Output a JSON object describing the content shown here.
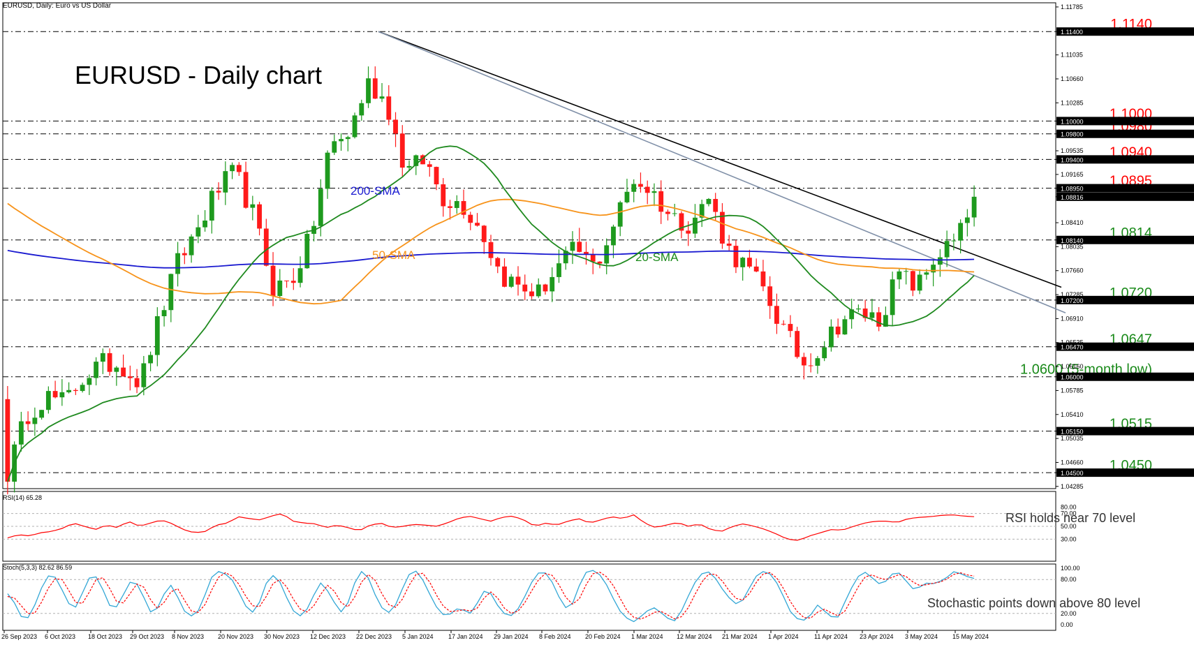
{
  "header": {
    "symbol_label": "EURUSD, Daily:  Euro vs US Dollar",
    "title": "EURUSD - Daily chart"
  },
  "colors": {
    "bull": "#1e9a1e",
    "bear": "#ff1a1a",
    "sma20": "#1f8a1f",
    "sma50": "#f7931a",
    "sma200": "#1a1ad0",
    "resistance_line": "#000000",
    "support_line": "#8090a8",
    "level_red": "#ff0000",
    "level_green": "#1a8a1a",
    "rsi": "#ff0000",
    "stoch_main": "#33a7d6",
    "stoch_signal": "#ff0000"
  },
  "chart_data": [
    {
      "type": "candlestick",
      "ylim": [
        1.0425,
        1.1185
      ],
      "x_ticks": [
        "26 Sep 2023",
        "6 Oct 2023",
        "18 Oct 2023",
        "29 Oct 2023",
        "8 Nov 2023",
        "20 Nov 2023",
        "30 Nov 2023",
        "12 Dec 2023",
        "22 Dec 2023",
        "5 Jan 2024",
        "17 Jan 2024",
        "29 Jan 2024",
        "8 Feb 2024",
        "20 Feb 2024",
        "1 Mar 2024",
        "12 Mar 2024",
        "21 Mar 2024",
        "1 Apr 2024",
        "11 Apr 2024",
        "23 Apr 2024",
        "3 May 2024",
        "15 May 2024"
      ],
      "y_ticks": [
        "1.11785",
        "1.11400",
        "1.11035",
        "1.10660",
        "1.10285",
        "1.10000",
        "1.09800",
        "1.09535",
        "1.09400",
        "1.09165",
        "1.08950",
        "1.08816",
        "1.08410",
        "1.08140",
        "1.08035",
        "1.07660",
        "1.07285",
        "1.07200",
        "1.06910",
        "1.06535",
        "1.06470",
        "1.06160",
        "1.06000",
        "1.05785",
        "1.05410",
        "1.05150",
        "1.05035",
        "1.04660",
        "1.04500",
        "1.04285"
      ],
      "levels": [
        {
          "value": 1.114,
          "label": "1.1140",
          "tag": "1.11400",
          "color": "red"
        },
        {
          "value": 1.1,
          "label": "1.1000",
          "tag": "1.10000",
          "color": "red"
        },
        {
          "value": 1.098,
          "label": "1.0980",
          "tag": "1.09800",
          "color": "red"
        },
        {
          "value": 1.094,
          "label": "1.0940",
          "tag": "1.09400",
          "color": "red"
        },
        {
          "value": 1.0895,
          "label": "1.0895",
          "tag": "1.08950",
          "color": "red"
        },
        {
          "value": 1.0814,
          "label": "1.0814",
          "tag": "1.08140",
          "color": "green"
        },
        {
          "value": 1.072,
          "label": "1.0720",
          "tag": "1.07200",
          "color": "green"
        },
        {
          "value": 1.0647,
          "label": "1.0647",
          "tag": "1.06470",
          "color": "green"
        },
        {
          "value": 1.06,
          "label": "1.0600 (5-month low)",
          "tag": "1.06000",
          "color": "green"
        },
        {
          "value": 1.0515,
          "label": "1.0515",
          "tag": "1.05150",
          "color": "green"
        },
        {
          "value": 1.045,
          "label": "1.0450",
          "tag": "1.04500",
          "color": "green"
        }
      ],
      "last_price": {
        "value": 1.08816,
        "tag": "1.08816"
      },
      "anchors": [
        [
          1.056,
          1.0625,
          1.048,
          1.045
        ],
        [
          1.056,
          1.059,
          1.05,
          1.054
        ],
        [
          1.061,
          1.065,
          1.054,
          1.057
        ],
        [
          1.058,
          1.062,
          1.053,
          1.056
        ],
        [
          1.062,
          1.065,
          1.057,
          1.06
        ],
        [
          1.066,
          1.069,
          1.06,
          1.062
        ],
        [
          1.067,
          1.07,
          1.06,
          1.062
        ],
        [
          1.061,
          1.065,
          1.057,
          1.059
        ],
        [
          1.072,
          1.074,
          1.065,
          1.069
        ],
        [
          1.082,
          1.085,
          1.073,
          1.078
        ],
        [
          1.088,
          1.091,
          1.082,
          1.083
        ],
        [
          1.094,
          1.097,
          1.086,
          1.089
        ],
        [
          1.095,
          1.1,
          1.09,
          1.092
        ],
        [
          1.09,
          1.095,
          1.08,
          1.085
        ],
        [
          1.078,
          1.08,
          1.073,
          1.074
        ],
        [
          1.078,
          1.082,
          1.072,
          1.075
        ],
        [
          1.092,
          1.096,
          1.078,
          1.082
        ],
        [
          1.098,
          1.101,
          1.09,
          1.096
        ],
        [
          1.099,
          1.104,
          1.096,
          1.098
        ],
        [
          1.11,
          1.114,
          1.101,
          1.106
        ],
        [
          1.105,
          1.109,
          1.099,
          1.103
        ],
        [
          1.093,
          1.099,
          1.088,
          1.092
        ],
        [
          1.096,
          1.1,
          1.09,
          1.094
        ],
        [
          1.089,
          1.094,
          1.085,
          1.088
        ],
        [
          1.089,
          1.093,
          1.084,
          1.087
        ],
        [
          1.086,
          1.09,
          1.08,
          1.083
        ],
        [
          1.078,
          1.082,
          1.073,
          1.076
        ],
        [
          1.076,
          1.079,
          1.072,
          1.074
        ],
        [
          1.075,
          1.078,
          1.07,
          1.073
        ],
        [
          1.079,
          1.083,
          1.072,
          1.077
        ],
        [
          1.081,
          1.085,
          1.077,
          1.08
        ],
        [
          1.078,
          1.082,
          1.074,
          1.077
        ],
        [
          1.086,
          1.09,
          1.08,
          1.084
        ],
        [
          1.093,
          1.097,
          1.088,
          1.091
        ],
        [
          1.093,
          1.096,
          1.086,
          1.089
        ],
        [
          1.09,
          1.094,
          1.083,
          1.085
        ],
        [
          1.085,
          1.089,
          1.082,
          1.084
        ],
        [
          1.09,
          1.093,
          1.085,
          1.088
        ],
        [
          1.082,
          1.086,
          1.076,
          1.08
        ],
        [
          1.079,
          1.084,
          1.073,
          1.077
        ],
        [
          1.077,
          1.08,
          1.069,
          1.073
        ],
        [
          1.07,
          1.073,
          1.063,
          1.067
        ],
        [
          1.064,
          1.068,
          1.06,
          1.062
        ],
        [
          1.068,
          1.071,
          1.062,
          1.065
        ],
        [
          1.072,
          1.074,
          1.066,
          1.069
        ],
        [
          1.072,
          1.075,
          1.068,
          1.07
        ],
        [
          1.072,
          1.076,
          1.065,
          1.069
        ],
        [
          1.071,
          1.078,
          1.07,
          1.076
        ],
        [
          1.079,
          1.081,
          1.071,
          1.074
        ],
        [
          1.08,
          1.082,
          1.075,
          1.079
        ],
        [
          1.085,
          1.089,
          1.079,
          1.081
        ],
        [
          1.088,
          1.0895,
          1.084,
          1.087
        ]
      ]
    },
    {
      "type": "line",
      "name": "RSI(14) 65.28",
      "annotation": "RSI holds near 70 level",
      "ylim": [
        0,
        100
      ],
      "y_ticks": [
        "80.00",
        "70.00",
        "50.00",
        "30.00"
      ],
      "levels": [
        70,
        50,
        30
      ],
      "anchors": [
        32,
        37,
        35,
        40,
        42,
        47,
        55,
        50,
        45,
        52,
        48,
        58,
        50,
        55,
        60,
        54,
        45,
        40,
        42,
        52,
        55,
        65,
        62,
        60,
        66,
        70,
        58,
        55,
        54,
        48,
        52,
        48,
        43,
        52,
        55,
        48,
        50,
        53,
        52,
        50,
        55,
        62,
        66,
        62,
        58,
        64,
        66,
        60,
        50,
        55,
        52,
        58,
        62,
        55,
        60,
        65,
        62,
        68,
        55,
        48,
        52,
        56,
        50,
        54,
        45,
        42,
        50,
        54,
        50,
        45,
        38,
        30,
        28,
        35,
        40,
        45,
        44,
        50,
        55,
        58,
        58,
        56,
        62,
        64,
        65,
        67,
        68,
        66,
        65
      ]
    },
    {
      "type": "line",
      "name": "Stoch(5,3,3) 82.62 86.59",
      "annotation": "Stochastic points down above 80 level",
      "ylim": [
        0,
        100
      ],
      "y_ticks": [
        "100.00",
        "80.00",
        "20.00",
        "0.00"
      ],
      "levels": [
        80,
        20
      ],
      "main_anchors": [
        55,
        40,
        15,
        10,
        30,
        60,
        85,
        90,
        70,
        45,
        25,
        40,
        75,
        90,
        80,
        50,
        25,
        35,
        60,
        80,
        70,
        45,
        20,
        30,
        55,
        70,
        50,
        25,
        15,
        20,
        45,
        80,
        95,
        92,
        85,
        70,
        40,
        25,
        20,
        55,
        85,
        88,
        70,
        40,
        20,
        15,
        30,
        55,
        75,
        60,
        40,
        22,
        35,
        70,
        95,
        90,
        60,
        35,
        20,
        25,
        50,
        80,
        98,
        92,
        70,
        45,
        25,
        15,
        20,
        30,
        25,
        20,
        40,
        60,
        55,
        35,
        20,
        15,
        25,
        45,
        70,
        90,
        95,
        85,
        60,
        35,
        25,
        50,
        85,
        98,
        95,
        85,
        65,
        40,
        20,
        10,
        5,
        15,
        25,
        30,
        22,
        12,
        5,
        20,
        45,
        70,
        88,
        95,
        90,
        70,
        55,
        40,
        35,
        50,
        75,
        92,
        95,
        88,
        70,
        45,
        20,
        10,
        8,
        18,
        35,
        25,
        15,
        10,
        35,
        60,
        82,
        95,
        88,
        75,
        70,
        85,
        95,
        88,
        70,
        60,
        70,
        75,
        72,
        78,
        85,
        95,
        90,
        85,
        82
      ],
      "signal_anchors": [
        50,
        48,
        35,
        20,
        18,
        35,
        60,
        80,
        85,
        70,
        45,
        32,
        45,
        70,
        88,
        80,
        55,
        35,
        40,
        60,
        75,
        65,
        42,
        28,
        40,
        58,
        65,
        45,
        25,
        20,
        30,
        55,
        80,
        93,
        90,
        80,
        60,
        40,
        28,
        35,
        60,
        80,
        80,
        62,
        40,
        25,
        22,
        35,
        55,
        70,
        60,
        40,
        30,
        45,
        72,
        90,
        85,
        62,
        40,
        28,
        35,
        58,
        82,
        95,
        88,
        68,
        45,
        28,
        22,
        25,
        27,
        24,
        30,
        48,
        58,
        48,
        30,
        20,
        22,
        35,
        55,
        75,
        90,
        92,
        80,
        58,
        38,
        35,
        55,
        82,
        95,
        92,
        82,
        65,
        42,
        22,
        12,
        10,
        15,
        22,
        24,
        18,
        10,
        12,
        25,
        48,
        70,
        88,
        92,
        85,
        68,
        52,
        42,
        45,
        62,
        82,
        93,
        92,
        80,
        60,
        38,
        22,
        12,
        12,
        22,
        28,
        22,
        15,
        20,
        40,
        62,
        82,
        90,
        85,
        80,
        80,
        88,
        90,
        82,
        72,
        68,
        72,
        74,
        76,
        82,
        90,
        92,
        88,
        86
      ]
    }
  ],
  "sma_labels": {
    "sma200": "200-SMA",
    "sma50": "50-SMA",
    "sma20": "20-SMA"
  }
}
